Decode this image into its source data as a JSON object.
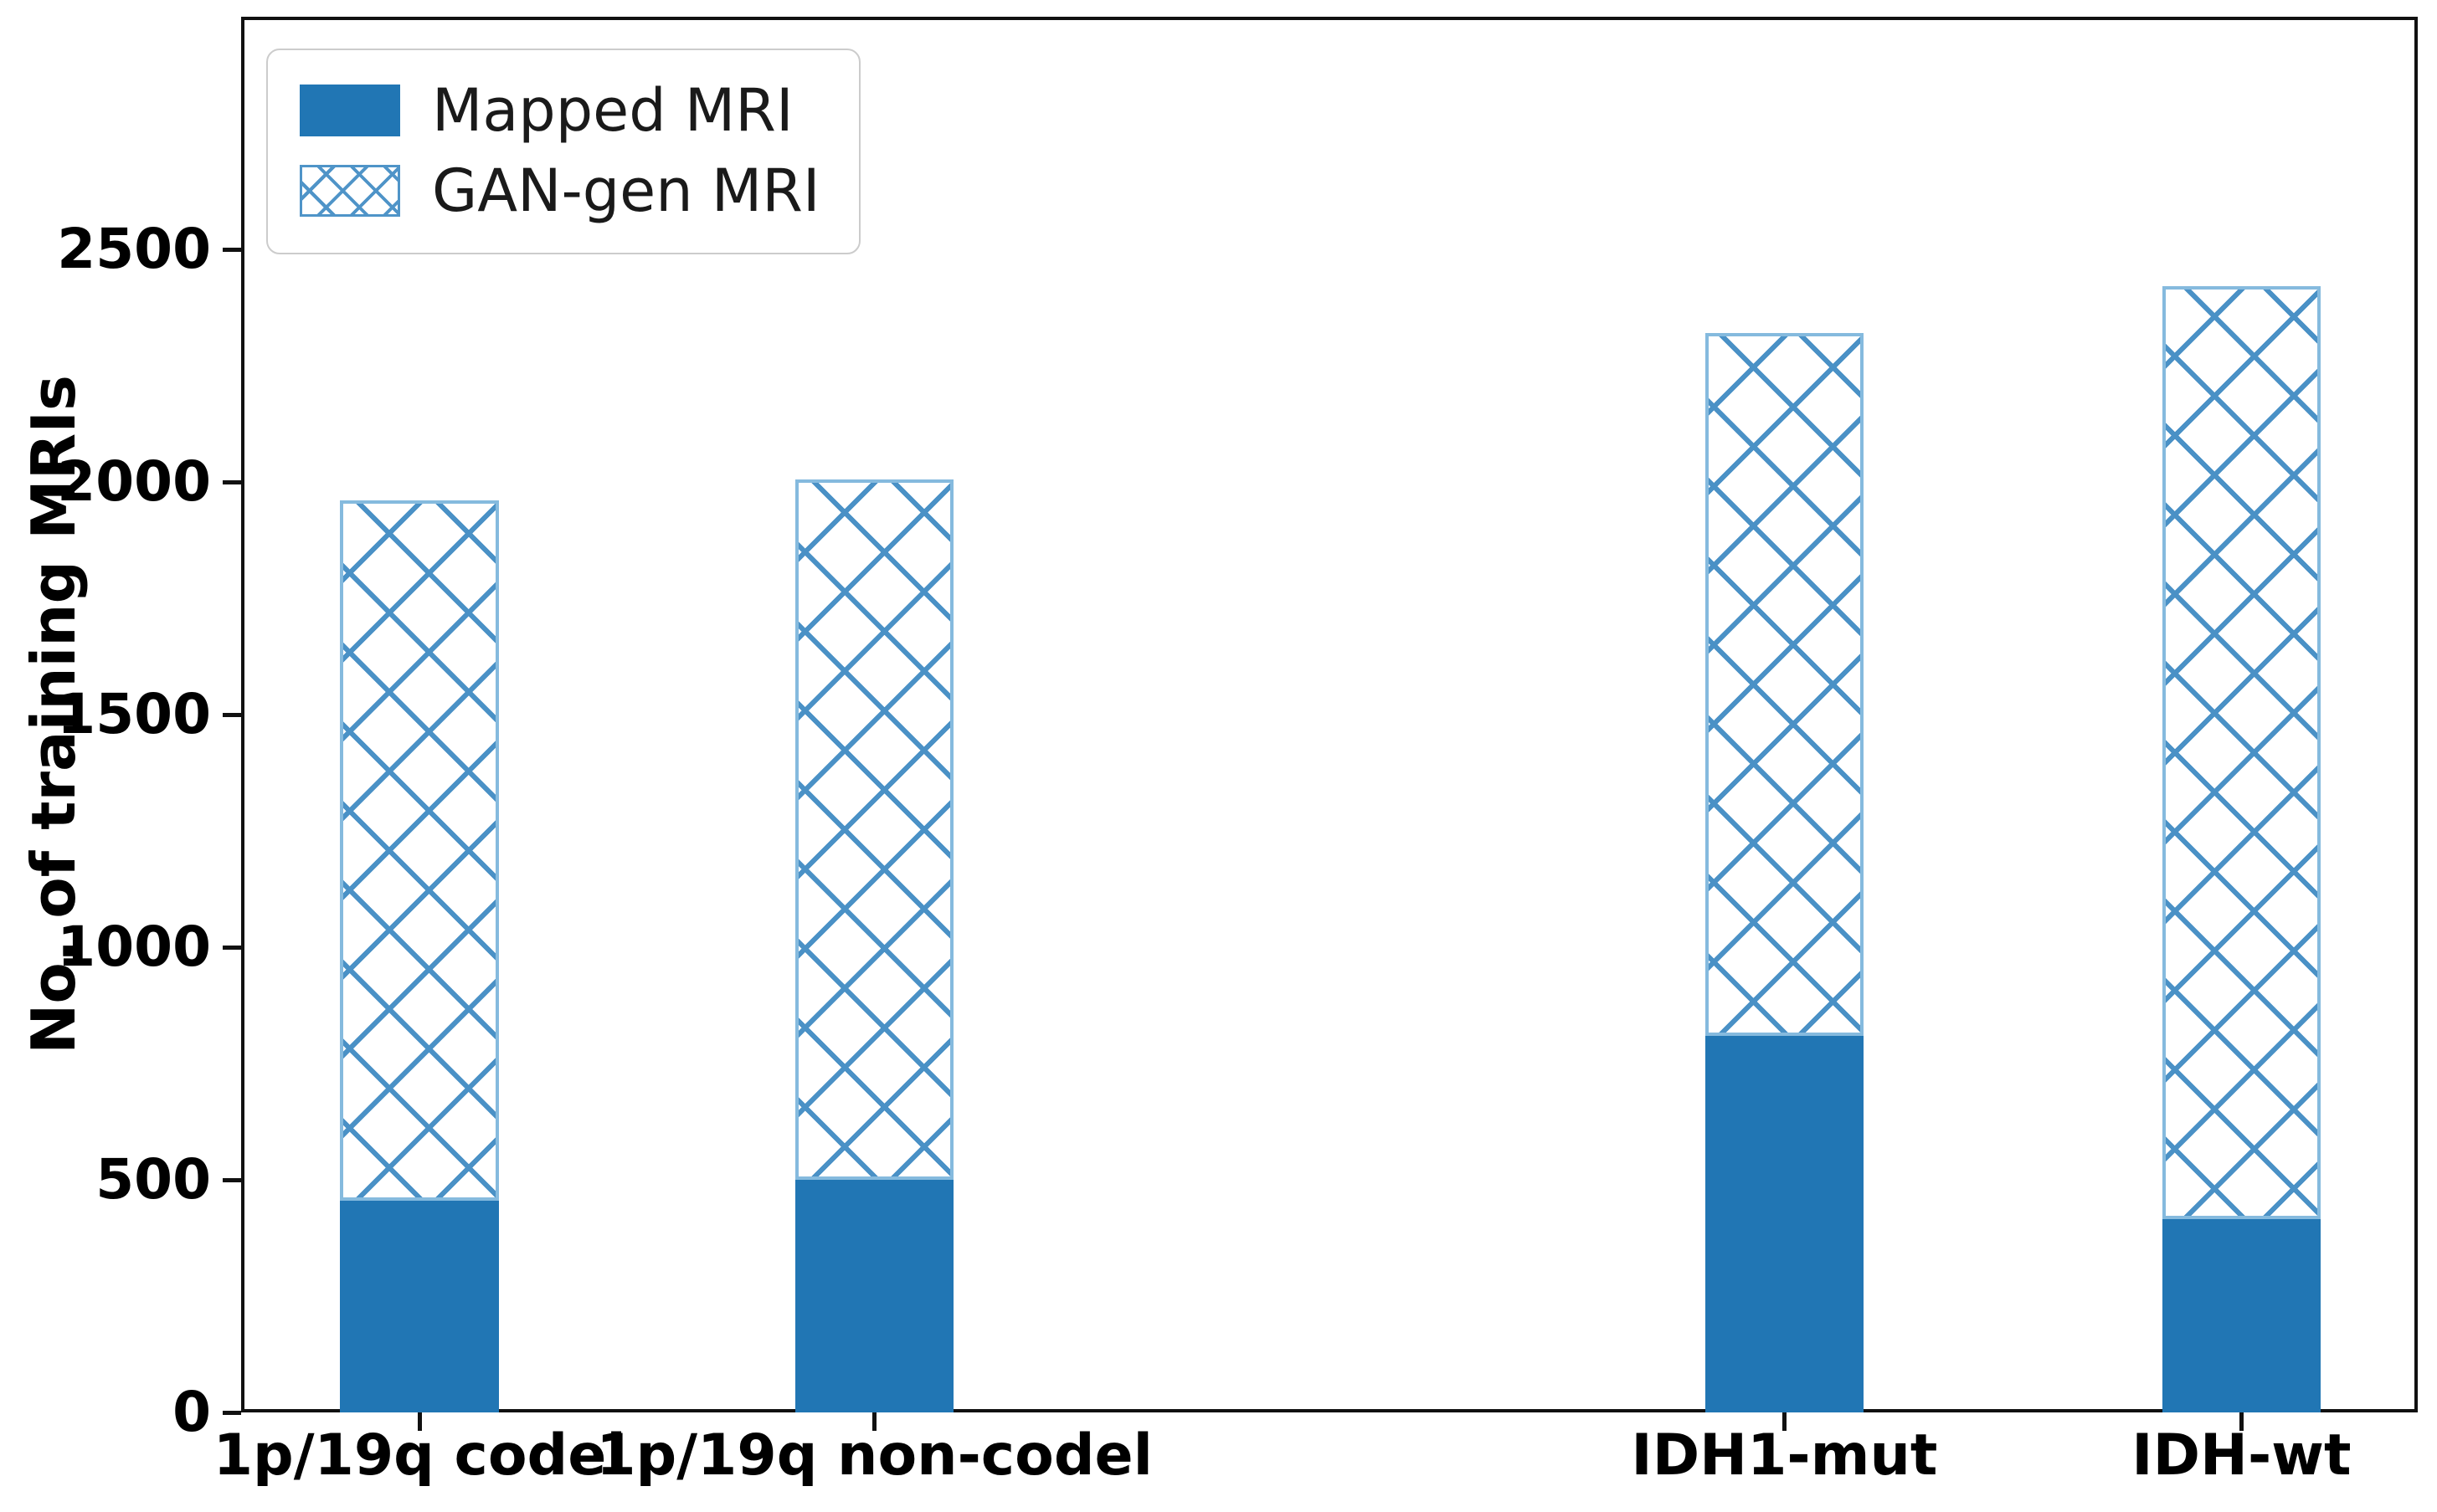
{
  "chart_data": {
    "type": "bar",
    "stacked": true,
    "title": "",
    "categories": [
      "1p/19q codel",
      "1p/19q non-codel",
      "IDH1-mut",
      "IDH-wt"
    ],
    "series": [
      {
        "name": "Mapped MRI",
        "style": "solid",
        "color": "#2176b4",
        "values": [
          455,
          500,
          810,
          415
        ]
      },
      {
        "name": "GAN-gen MRI",
        "style": "crosshatch",
        "fill": "#ffffff",
        "hatch_color": "#4a91c6",
        "edge_color": "#85bade",
        "values": [
          1505,
          1505,
          1510,
          2005
        ]
      }
    ],
    "totals": [
      1960,
      2005,
      2320,
      2420
    ],
    "xlabel": "",
    "ylabel": "No. of training MRIs",
    "ylim": [
      0,
      3000
    ],
    "yticks": [
      0,
      500,
      1000,
      1500,
      2000,
      2500
    ],
    "grid": false,
    "legend_position": "upper left",
    "layout_hints": {
      "bar_centers_pct": [
        8.2,
        29.1,
        70.9,
        91.9
      ],
      "bar_width_pct": 7.3,
      "note": "categories placed at x positions 0,1,3,4 leaving a gap between the 1p/19q group and the IDH group"
    }
  }
}
